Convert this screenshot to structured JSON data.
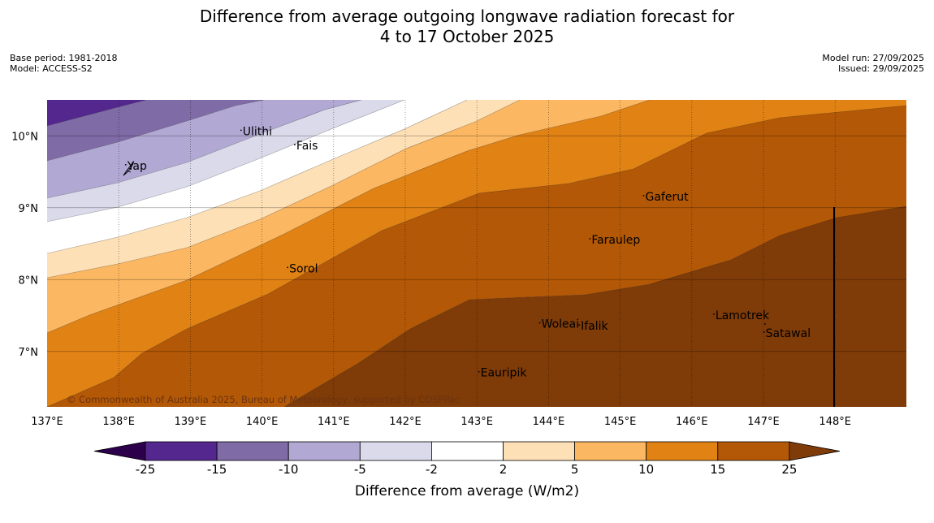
{
  "title": {
    "line1": "Difference from average outgoing longwave radiation forecast for",
    "line2": "4 to 17 October 2025"
  },
  "info_left": {
    "base_period": "Base period: 1981-2018",
    "model": "Model: ACCESS-S2"
  },
  "info_right": {
    "model_run": "Model run: 27/09/2025",
    "issued": "Issued: 29/09/2025"
  },
  "map": {
    "lon_range": [
      137,
      149
    ],
    "lat_range": [
      6.2,
      10.5
    ],
    "lon_ticks": [
      {
        "value": 137,
        "label": "137°E"
      },
      {
        "value": 138,
        "label": "138°E"
      },
      {
        "value": 139,
        "label": "139°E"
      },
      {
        "value": 140,
        "label": "140°E"
      },
      {
        "value": 141,
        "label": "141°E"
      },
      {
        "value": 142,
        "label": "142°E"
      },
      {
        "value": 143,
        "label": "143°E"
      },
      {
        "value": 144,
        "label": "144°E"
      },
      {
        "value": 145,
        "label": "145°E"
      },
      {
        "value": 146,
        "label": "146°E"
      },
      {
        "value": 147,
        "label": "147°E"
      },
      {
        "value": 148,
        "label": "148°E"
      }
    ],
    "lat_ticks": [
      {
        "value": 10,
        "label": "10°N"
      },
      {
        "value": 9,
        "label": "9°N"
      },
      {
        "value": 8,
        "label": "8°N"
      },
      {
        "value": 7,
        "label": "7°N"
      }
    ],
    "places": [
      {
        "name": "Yap",
        "lon": 138.12,
        "lat": 9.53
      },
      {
        "name": "Ulithi",
        "lon": 139.73,
        "lat": 10.01
      },
      {
        "name": "Fais",
        "lon": 140.48,
        "lat": 9.81
      },
      {
        "name": "Sorol",
        "lon": 140.38,
        "lat": 8.1
      },
      {
        "name": "Gaferut",
        "lon": 145.35,
        "lat": 9.1
      },
      {
        "name": "Faraulep",
        "lon": 144.6,
        "lat": 8.5
      },
      {
        "name": "Woleai",
        "lon": 143.9,
        "lat": 7.33
      },
      {
        "name": "Ifalik",
        "lon": 144.45,
        "lat": 7.3
      },
      {
        "name": "Lamotrek",
        "lon": 146.33,
        "lat": 7.45
      },
      {
        "name": "Satawal",
        "lon": 147.03,
        "lat": 7.2
      },
      {
        "name": "Eauripik",
        "lon": 143.05,
        "lat": 6.65
      }
    ],
    "copyright": "© Commonwealth of Australia 2025, Bureau of Meteorology, supported by COSPPac"
  },
  "colorbar": {
    "title": "Difference from average (W/m2)",
    "boundaries": [
      "-25",
      "-15",
      "-10",
      "-5",
      "-2",
      "2",
      "5",
      "10",
      "15",
      "25"
    ],
    "colors": [
      "#54278f",
      "#7f6ba6",
      "#b1a9d3",
      "#dadaeb",
      "#ffffff",
      "#fee0b6",
      "#fbb761",
      "#e08214",
      "#b35806"
    ],
    "under_color": "#2d004b",
    "over_color": "#7f3b08"
  },
  "band_colors": [
    "#54278f",
    "#7f6ba6",
    "#b1a9d3",
    "#dadaeb",
    "#ffffff",
    "#fee0b6",
    "#fbb761",
    "#e08214",
    "#b35806",
    "#7f3b08"
  ]
}
